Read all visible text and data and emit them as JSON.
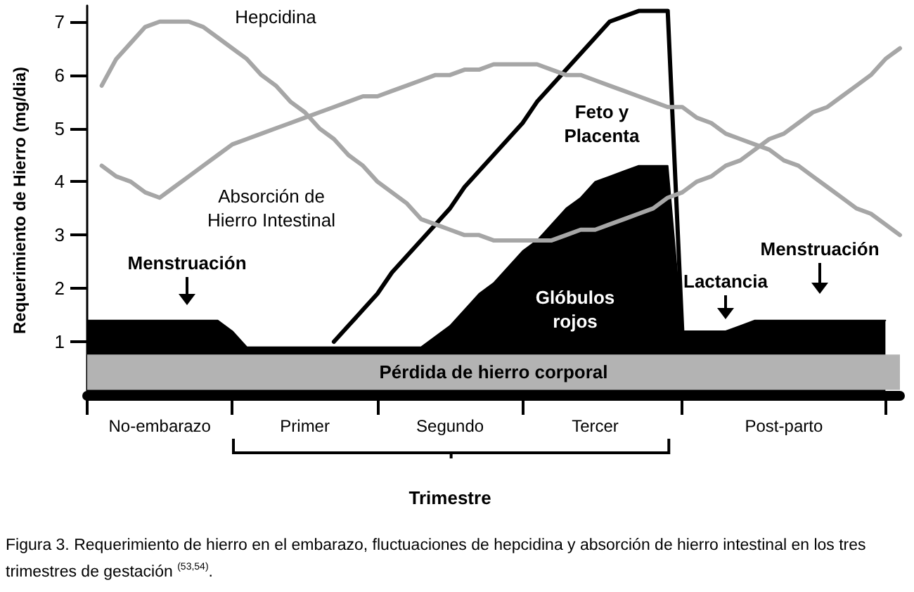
{
  "chart_data": {
    "type": "line",
    "ylabel": "Requerimiento de Hierro (mg/dia)",
    "xlabel": "Trimestre",
    "categories": [
      null,
      null,
      null,
      null,
      null,
      "No-embarazo",
      null,
      null,
      null,
      null,
      null,
      null,
      null,
      null,
      null,
      "Primer",
      null,
      null,
      null,
      null,
      null,
      null,
      null,
      null,
      null,
      "Segundo",
      null,
      null,
      null,
      null,
      null,
      null,
      null,
      null,
      null,
      "Tercer",
      null,
      null,
      null,
      null,
      null,
      null,
      null,
      null,
      null,
      null,
      null,
      null,
      "Post-parto",
      null,
      null,
      null,
      null,
      null,
      null,
      null,
      null
    ],
    "ylim": [
      0,
      7.3
    ],
    "yticks": [
      1,
      2,
      3,
      4,
      5,
      6,
      7
    ],
    "grid": false,
    "marker": "none",
    "series": [
      {
        "type": "area",
        "color": "#000000",
        "values": [
          1.4,
          1.4,
          1.4,
          1.4,
          1.4,
          1.4,
          1.4,
          1.4,
          1.4,
          1.4,
          1.2,
          0.9,
          0.9,
          0.9,
          0.9,
          0.9,
          0.9,
          0.9,
          0.9,
          0.9,
          0.9,
          0.9,
          0.9,
          0.9,
          1.1,
          1.3,
          1.6,
          1.9,
          2.1,
          2.4,
          2.7,
          2.9,
          3.2,
          3.5,
          3.7,
          4.0,
          4.1,
          4.2,
          4.3,
          4.3,
          4.3,
          1.2,
          1.2,
          1.2,
          1.2,
          1.3,
          1.4,
          1.4,
          1.4,
          1.4,
          1.4,
          1.4,
          1.4,
          1.4,
          1.4,
          1.4,
          null
        ]
      },
      {
        "color": "#000000",
        "values": [
          null,
          null,
          null,
          null,
          null,
          null,
          null,
          null,
          null,
          null,
          null,
          null,
          null,
          null,
          null,
          null,
          null,
          1.0,
          1.3,
          1.6,
          1.9,
          2.3,
          2.6,
          2.9,
          3.2,
          3.5,
          3.9,
          4.2,
          4.5,
          4.8,
          5.1,
          5.5,
          5.8,
          6.1,
          6.4,
          6.7,
          7.0,
          7.1,
          7.2,
          7.2,
          7.2,
          1.2,
          null,
          null,
          null,
          null,
          null,
          null,
          null,
          null,
          null,
          null,
          null,
          null,
          null,
          null,
          null
        ]
      },
      {
        "color": "#a6a6a6",
        "values": [
          null,
          5.8,
          6.3,
          6.6,
          6.9,
          7.0,
          7.0,
          7.0,
          6.9,
          6.7,
          6.5,
          6.3,
          6.0,
          5.8,
          5.5,
          5.3,
          5.0,
          4.8,
          4.5,
          4.3,
          4.0,
          3.8,
          3.6,
          3.3,
          3.2,
          3.1,
          3.0,
          3.0,
          2.9,
          2.9,
          2.9,
          2.9,
          2.9,
          3.0,
          3.1,
          3.1,
          3.2,
          3.3,
          3.4,
          3.5,
          3.7,
          3.8,
          4.0,
          4.1,
          4.3,
          4.4,
          4.6,
          4.8,
          4.9,
          5.1,
          5.3,
          5.4,
          5.6,
          5.8,
          6.0,
          6.3,
          6.5
        ]
      },
      {
        "color": "#a6a6a6",
        "values": [
          null,
          4.3,
          4.1,
          4.0,
          3.8,
          3.7,
          3.9,
          4.1,
          4.3,
          4.5,
          4.7,
          4.8,
          4.9,
          5.0,
          5.1,
          5.2,
          5.3,
          5.4,
          5.5,
          5.6,
          5.6,
          5.7,
          5.8,
          5.9,
          6.0,
          6.0,
          6.1,
          6.1,
          6.2,
          6.2,
          6.2,
          6.2,
          6.1,
          6.0,
          6.0,
          5.9,
          5.8,
          5.7,
          5.6,
          5.5,
          5.4,
          5.4,
          5.2,
          5.1,
          4.9,
          4.8,
          4.7,
          4.6,
          4.4,
          4.3,
          4.1,
          3.9,
          3.7,
          3.5,
          3.4,
          3.2,
          3.0
        ]
      }
    ],
    "bands": [
      {
        "axis": "y",
        "from": 0.1,
        "to": 0.76,
        "label": "Pérdida de hierro corporal",
        "color": "#b3b3b3"
      }
    ],
    "annotations": [
      "Hepcidina",
      "Absorción de\nHierro Intestinal",
      "Feto y\nPlacenta",
      "Glóbulos\nrojos",
      "Menstruación",
      "Lactancia",
      "Menstruación",
      "Figura 3. Requerimiento de hierro en el embarazo, fluctuaciones de hepcidina y absorción de hierro intestinal en los tres trimestres de gestación $^{(53,54)}$."
    ]
  }
}
